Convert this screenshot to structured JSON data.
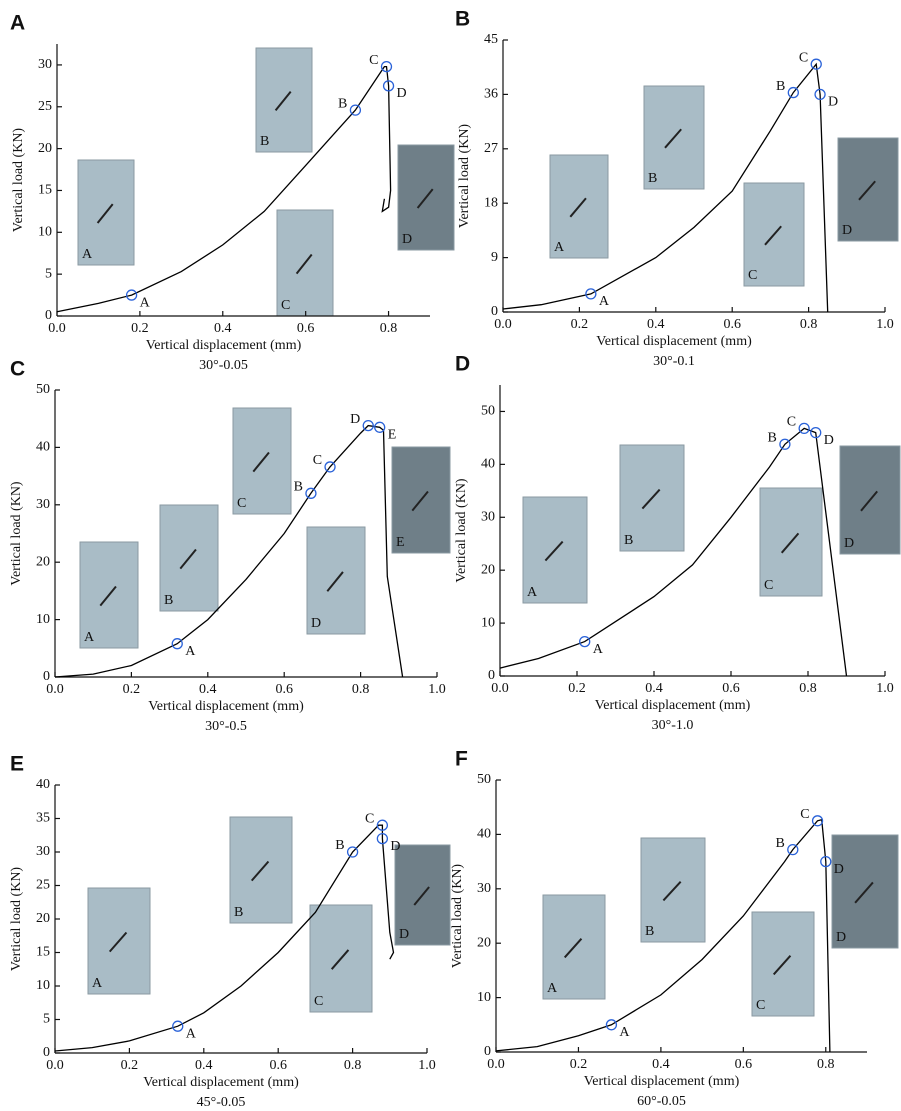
{
  "chart_data": [
    {
      "type": "line",
      "panel": "A",
      "xlabel": "Vertical displacement (mm)",
      "ylabel": "Vertical load (KN)",
      "caption": "30°-0.05",
      "color": "#000000",
      "marker_color": "#2a62d8",
      "x": [
        0,
        0.1,
        0.18,
        0.3,
        0.4,
        0.5,
        0.6,
        0.7,
        0.72,
        0.79,
        0.795,
        0.8,
        0.805,
        0.8,
        0.785,
        0.79
      ],
      "values": [
        0.5,
        1.5,
        2.5,
        5.3,
        8.5,
        12.5,
        18,
        23.5,
        24.6,
        29.8,
        29.8,
        27.5,
        15,
        13,
        12.5,
        14
      ],
      "points": {
        "labels": [
          "A",
          "B",
          "C",
          "D"
        ],
        "x": [
          0.18,
          0.72,
          0.795,
          0.8
        ],
        "y": [
          2.5,
          24.6,
          29.8,
          27.5
        ]
      },
      "insets": [
        "A",
        "B",
        "C",
        "D"
      ],
      "xlim": [
        0,
        0.9
      ],
      "xticks": [
        {
          "value": 0,
          "label": "0.0"
        },
        0.2,
        0.4,
        0.6,
        0.8
      ],
      "ylim": [
        0,
        32.5
      ],
      "yticks": [
        0,
        5,
        10,
        15,
        20,
        25,
        30
      ]
    },
    {
      "type": "line",
      "panel": "B",
      "xlabel": "Vertical displacement (mm)",
      "ylabel": "Vertical load (KN)",
      "caption": "30°-0.1",
      "color": "#000000",
      "marker_color": "#2a62d8",
      "x": [
        0,
        0.1,
        0.23,
        0.4,
        0.5,
        0.6,
        0.7,
        0.76,
        0.82,
        0.83,
        0.85
      ],
      "values": [
        0.5,
        1.2,
        3,
        9,
        14,
        20,
        30,
        36.3,
        41,
        36,
        0
      ],
      "points": {
        "labels": [
          "A",
          "B",
          "C",
          "D"
        ],
        "x": [
          0.23,
          0.76,
          0.82,
          0.83
        ],
        "y": [
          3,
          36.3,
          41,
          36
        ]
      },
      "insets": [
        "A",
        "B",
        "C",
        "D"
      ],
      "xlim": [
        0,
        1.0
      ],
      "xticks": [
        {
          "value": 0,
          "label": "0.0"
        },
        0.2,
        0.4,
        0.6,
        0.8,
        {
          "value": 1,
          "label": "1.0"
        }
      ],
      "ylim": [
        0,
        45
      ],
      "yticks": [
        0,
        9,
        18,
        27,
        36,
        45
      ]
    },
    {
      "type": "line",
      "panel": "C",
      "xlabel": "Vertical displacement (mm)",
      "ylabel": "Vertical load (KN)",
      "caption": "30°-0.5",
      "color": "#000000",
      "marker_color": "#2a62d8",
      "x": [
        0,
        0.1,
        0.2,
        0.32,
        0.4,
        0.5,
        0.6,
        0.67,
        0.72,
        0.8,
        0.82,
        0.85,
        0.86,
        0.87,
        0.91
      ],
      "values": [
        0,
        0.5,
        2,
        5.8,
        10,
        17,
        25,
        32,
        36.6,
        42.5,
        43.8,
        43.5,
        43,
        17.5,
        0
      ],
      "points": {
        "labels": [
          "A",
          "B",
          "C",
          "D",
          "E"
        ],
        "x": [
          0.32,
          0.67,
          0.72,
          0.82,
          0.85
        ],
        "y": [
          5.8,
          32,
          36.6,
          43.8,
          43.5
        ]
      },
      "insets": [
        "A",
        "B",
        "C",
        "D",
        "E"
      ],
      "xlim": [
        0,
        1.0
      ],
      "xticks": [
        {
          "value": 0,
          "label": "0.0"
        },
        0.2,
        0.4,
        0.6,
        0.8,
        {
          "value": 1,
          "label": "1.0"
        }
      ],
      "ylim": [
        0,
        50
      ],
      "yticks": [
        0,
        10,
        20,
        30,
        40,
        50
      ]
    },
    {
      "type": "line",
      "panel": "D",
      "xlabel": "Vertical displacement (mm)",
      "ylabel": "Vertical load (KN)",
      "caption": "30°-1.0",
      "color": "#000000",
      "marker_color": "#2a62d8",
      "x": [
        0,
        0.1,
        0.22,
        0.4,
        0.5,
        0.6,
        0.7,
        0.74,
        0.79,
        0.82,
        0.9
      ],
      "values": [
        1.5,
        3.3,
        6.5,
        15,
        21,
        30,
        39.5,
        43.8,
        46.8,
        46,
        0
      ],
      "points": {
        "labels": [
          "A",
          "B",
          "C",
          "D"
        ],
        "x": [
          0.22,
          0.74,
          0.79,
          0.82
        ],
        "y": [
          6.5,
          43.8,
          46.8,
          46
        ]
      },
      "insets": [
        "A",
        "B",
        "C",
        "D"
      ],
      "xlim": [
        0,
        1.0
      ],
      "xticks": [
        {
          "value": 0,
          "label": "0.0"
        },
        0.2,
        0.4,
        0.6,
        0.8,
        {
          "value": 1,
          "label": "1.0"
        }
      ],
      "ylim": [
        0,
        55
      ],
      "yticks": [
        0,
        10,
        20,
        30,
        40,
        50
      ]
    },
    {
      "type": "line",
      "panel": "E",
      "xlabel": "Vertical displacement (mm)",
      "ylabel": "Vertical load (KN)",
      "caption": "45°-0.05",
      "color": "#000000",
      "marker_color": "#2a62d8",
      "x": [
        0,
        0.1,
        0.2,
        0.33,
        0.4,
        0.5,
        0.6,
        0.7,
        0.8,
        0.87,
        0.88,
        0.88,
        0.9,
        0.91,
        0.9
      ],
      "values": [
        0.3,
        0.8,
        1.8,
        4,
        6,
        10,
        15,
        21,
        30,
        34,
        34,
        32,
        18,
        15,
        14
      ],
      "points": {
        "labels": [
          "A",
          "B",
          "C",
          "D"
        ],
        "x": [
          0.33,
          0.8,
          0.88,
          0.88
        ],
        "y": [
          4,
          30,
          34,
          32
        ]
      },
      "insets": [
        "A",
        "B",
        "C",
        "D"
      ],
      "xlim": [
        0,
        1.0
      ],
      "xticks": [
        {
          "value": 0,
          "label": "0.0"
        },
        0.2,
        0.4,
        0.6,
        0.8,
        {
          "value": 1,
          "label": "1.0"
        }
      ],
      "ylim": [
        0,
        40
      ],
      "yticks": [
        0,
        5,
        10,
        15,
        20,
        25,
        30,
        35,
        40
      ]
    },
    {
      "type": "line",
      "panel": "F",
      "xlabel": "Vertical displacement (mm)",
      "ylabel": "Vertical load (KN)",
      "caption": "60°-0.05",
      "color": "#000000",
      "marker_color": "#2a62d8",
      "x": [
        0,
        0.1,
        0.2,
        0.28,
        0.4,
        0.5,
        0.6,
        0.7,
        0.72,
        0.78,
        0.79,
        0.8,
        0.81
      ],
      "values": [
        0.2,
        1,
        3,
        5,
        10.5,
        17,
        25,
        35,
        37.2,
        42.5,
        42.7,
        35,
        0
      ],
      "points": {
        "labels": [
          "A",
          "B",
          "C",
          "D"
        ],
        "x": [
          0.28,
          0.72,
          0.78,
          0.8
        ],
        "y": [
          5,
          37.2,
          42.5,
          35
        ]
      },
      "insets": [
        "A",
        "B",
        "C",
        "D"
      ],
      "xlim": [
        0,
        0.9
      ],
      "xticks": [
        {
          "value": 0,
          "label": "0.0"
        },
        0.2,
        0.4,
        0.6,
        0.8
      ],
      "ylim": [
        0,
        50
      ],
      "yticks": [
        0,
        10,
        20,
        30,
        40,
        50
      ]
    }
  ]
}
